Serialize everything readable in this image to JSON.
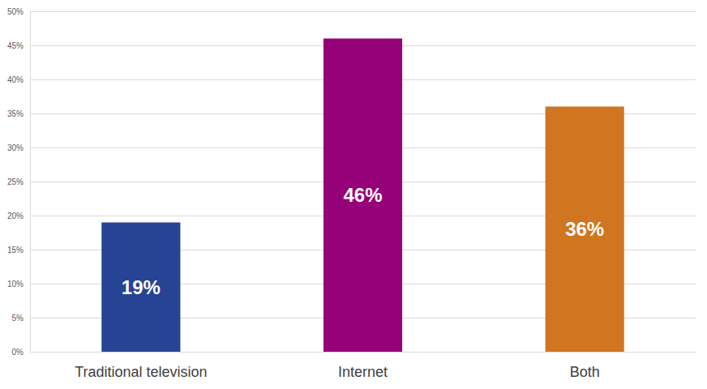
{
  "chart_data": {
    "type": "bar",
    "categories": [
      "Traditional television",
      "Internet",
      "Both"
    ],
    "values": [
      19,
      46,
      36
    ],
    "value_labels": [
      "19%",
      "46%",
      "36%"
    ],
    "colors": [
      "#264394",
      "#960078",
      "#d07520"
    ],
    "ylim": [
      0,
      50
    ],
    "yticks": [
      {
        "value": 0,
        "label": "0%"
      },
      {
        "value": 5,
        "label": "5%"
      },
      {
        "value": 10,
        "label": "10%"
      },
      {
        "value": 15,
        "label": "15%"
      },
      {
        "value": 20,
        "label": "20%"
      },
      {
        "value": 25,
        "label": "25%"
      },
      {
        "value": 30,
        "label": "30%"
      },
      {
        "value": 35,
        "label": "35%"
      },
      {
        "value": 40,
        "label": "40%"
      },
      {
        "value": 45,
        "label": "45%"
      },
      {
        "value": 50,
        "label": "50%"
      }
    ],
    "grid": true,
    "data_labels": true
  }
}
